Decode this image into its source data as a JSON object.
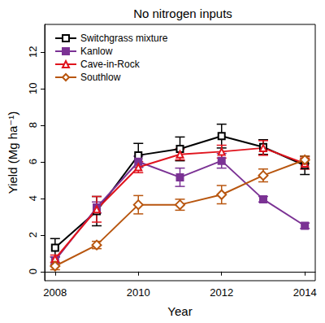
{
  "chart_data": {
    "type": "line",
    "title": "No nitrogen inputs",
    "x_label": "Year",
    "y_label": "Yield (Mg ha⁻¹)",
    "x": [
      2008,
      2009,
      2010,
      2011,
      2012,
      2013,
      2014
    ],
    "xlim": [
      2007.75,
      2014.25
    ],
    "xticks": [
      2008,
      2010,
      2012,
      2014
    ],
    "ylim": [
      -0.5,
      13.5
    ],
    "yticks": [
      0,
      2,
      4,
      6,
      8,
      10,
      12
    ],
    "grid": false,
    "legend": "upper left",
    "series": [
      {
        "name": "Switchgrass mixture",
        "color": "#000000",
        "marker": "square_open",
        "values": [
          1.3,
          3.3,
          6.35,
          6.7,
          7.4,
          6.8,
          5.8
        ],
        "errors": [
          0.5,
          0.8,
          0.65,
          0.65,
          0.65,
          0.4,
          0.5
        ]
      },
      {
        "name": "Kanlow",
        "color": "#7b3294",
        "marker": "square",
        "values": [
          0.6,
          3.5,
          6.0,
          5.15,
          6.05,
          3.95,
          2.5
        ],
        "errors": [
          0.2,
          0.3,
          0.3,
          0.5,
          0.4,
          0.15,
          0.15
        ]
      },
      {
        "name": "Cave-in-Rock",
        "color": "#e0141e",
        "marker": "triangle_open",
        "values": [
          0.7,
          3.4,
          5.7,
          6.4,
          6.55,
          6.75,
          5.9
        ],
        "errors": [
          0.2,
          0.7,
          0.3,
          0.3,
          0.35,
          0.4,
          0.3
        ]
      },
      {
        "name": "Southlow",
        "color": "#b8560f",
        "marker": "diamond_open",
        "values": [
          0.3,
          1.45,
          3.65,
          3.65,
          4.2,
          5.25,
          6.1
        ],
        "errors": [
          0.2,
          0.2,
          0.5,
          0.3,
          0.5,
          0.35,
          0.2
        ]
      }
    ]
  }
}
